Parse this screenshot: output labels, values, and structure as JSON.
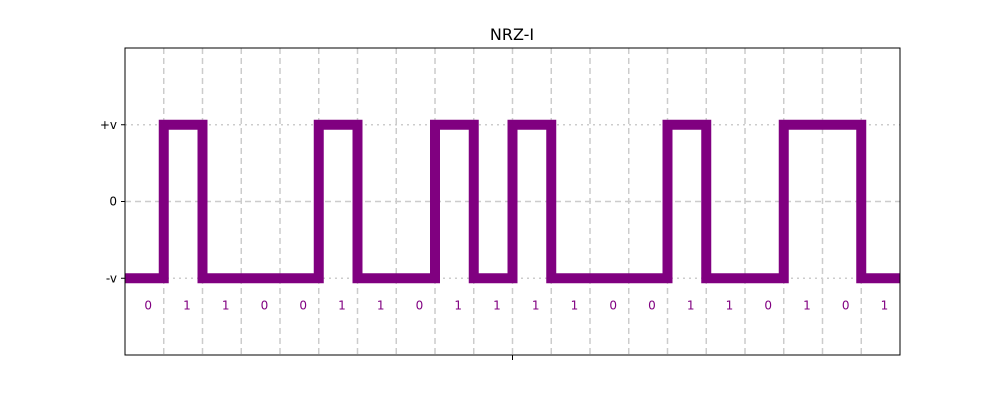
{
  "chart_data": {
    "type": "line",
    "title": "NRZ-I",
    "encoding": "NRZ-I",
    "bits": [
      "0",
      "1",
      "1",
      "0",
      "0",
      "1",
      "1",
      "0",
      "1",
      "1",
      "1",
      "1",
      "0",
      "0",
      "1",
      "1",
      "0",
      "1",
      "0",
      "1"
    ],
    "levels": [
      -1,
      1,
      -1,
      -1,
      -1,
      1,
      -1,
      -1,
      1,
      -1,
      1,
      -1,
      -1,
      -1,
      1,
      -1,
      -1,
      1,
      1,
      -1
    ],
    "xlim": [
      0,
      20
    ],
    "ylim": [
      -2,
      2
    ],
    "yticks": [
      {
        "value": 1,
        "label": "+v"
      },
      {
        "value": 0,
        "label": "0"
      },
      {
        "value": -1,
        "label": "-v"
      }
    ],
    "grid": true,
    "signal_color": "#800080",
    "label_color": "#800080",
    "grid_color": "#cccccc"
  }
}
